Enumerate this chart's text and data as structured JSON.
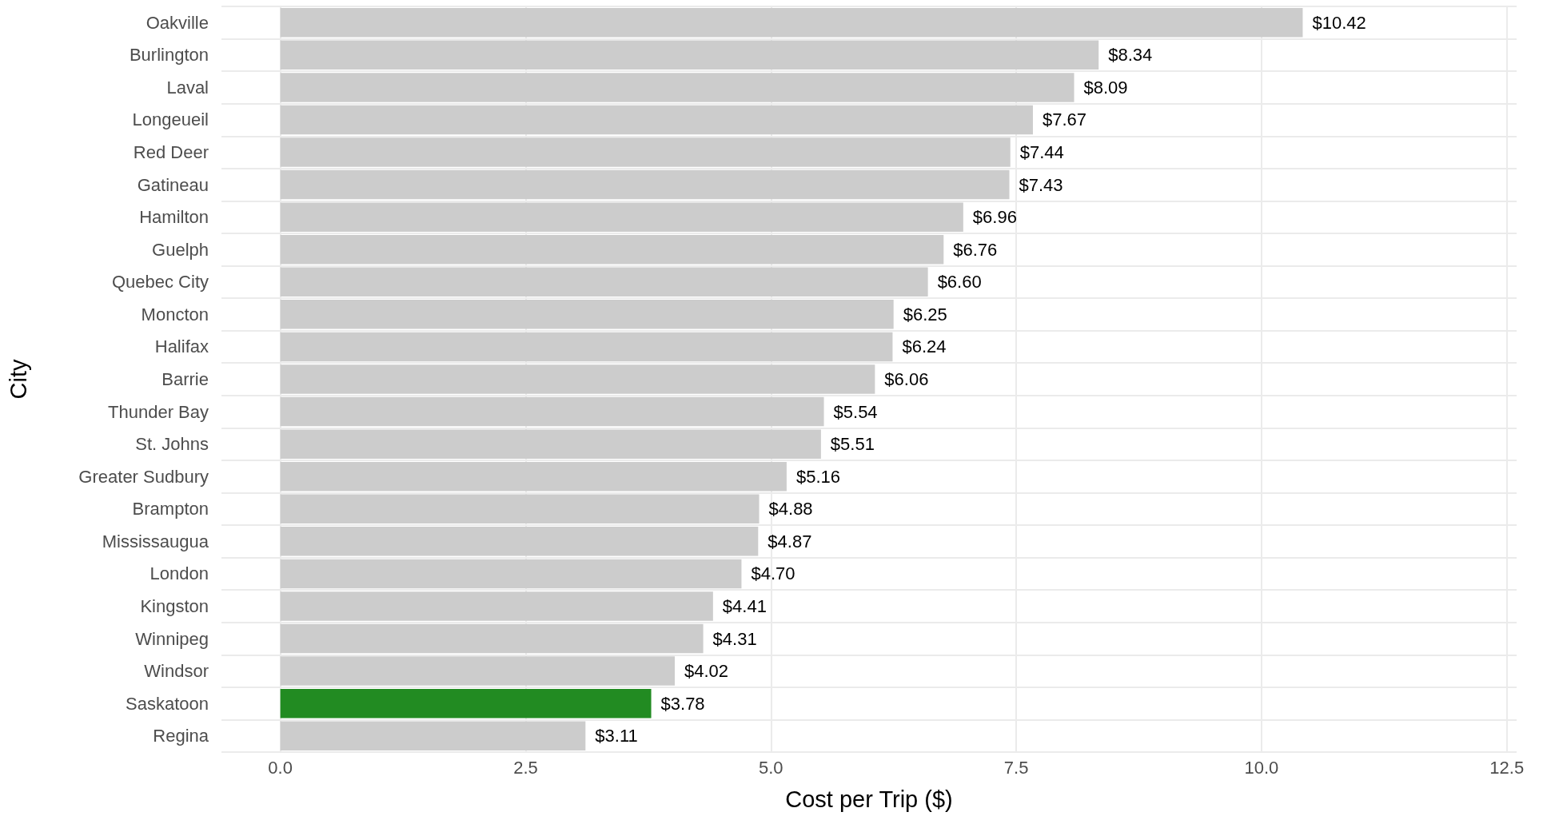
{
  "chart_data": {
    "type": "bar",
    "orientation": "horizontal",
    "xlabel": "Cost per Trip ($)",
    "ylabel": "City",
    "categories": [
      "Oakville",
      "Burlington",
      "Laval",
      "Longeueil",
      "Red Deer",
      "Gatineau",
      "Hamilton",
      "Guelph",
      "Quebec City",
      "Moncton",
      "Halifax",
      "Barrie",
      "Thunder Bay",
      "St. Johns",
      "Greater Sudbury",
      "Brampton",
      "Mississaugua",
      "London",
      "Kingston",
      "Winnipeg",
      "Windsor",
      "Saskatoon",
      "Regina"
    ],
    "values": [
      10.42,
      8.34,
      8.09,
      7.67,
      7.44,
      7.43,
      6.96,
      6.76,
      6.6,
      6.25,
      6.24,
      6.06,
      5.54,
      5.51,
      5.16,
      4.88,
      4.87,
      4.7,
      4.41,
      4.31,
      4.02,
      3.78,
      3.11
    ],
    "value_labels": [
      "$10.42",
      "$8.34",
      "$8.09",
      "$7.67",
      "$7.44",
      "$7.43",
      "$6.96",
      "$6.76",
      "$6.60",
      "$6.25",
      "$6.24",
      "$6.06",
      "$5.54",
      "$5.51",
      "$5.16",
      "$4.88",
      "$4.87",
      "$4.70",
      "$4.41",
      "$4.31",
      "$4.02",
      "$3.78",
      "$3.11"
    ],
    "colors": [
      "#cccccc",
      "#cccccc",
      "#cccccc",
      "#cccccc",
      "#cccccc",
      "#cccccc",
      "#cccccc",
      "#cccccc",
      "#cccccc",
      "#cccccc",
      "#cccccc",
      "#cccccc",
      "#cccccc",
      "#cccccc",
      "#cccccc",
      "#cccccc",
      "#cccccc",
      "#cccccc",
      "#cccccc",
      "#cccccc",
      "#cccccc",
      "#228b22",
      "#cccccc"
    ],
    "xlim": [
      -0.6,
      12.6
    ],
    "xticks": [
      {
        "value": 0,
        "label": "0.0"
      },
      {
        "value": 2.5,
        "label": "2.5"
      },
      {
        "value": 5,
        "label": "5.0"
      },
      {
        "value": 7.5,
        "label": "7.5"
      },
      {
        "value": 10,
        "label": "10.0"
      },
      {
        "value": 12.5,
        "label": "12.5"
      }
    ],
    "grid": true
  }
}
